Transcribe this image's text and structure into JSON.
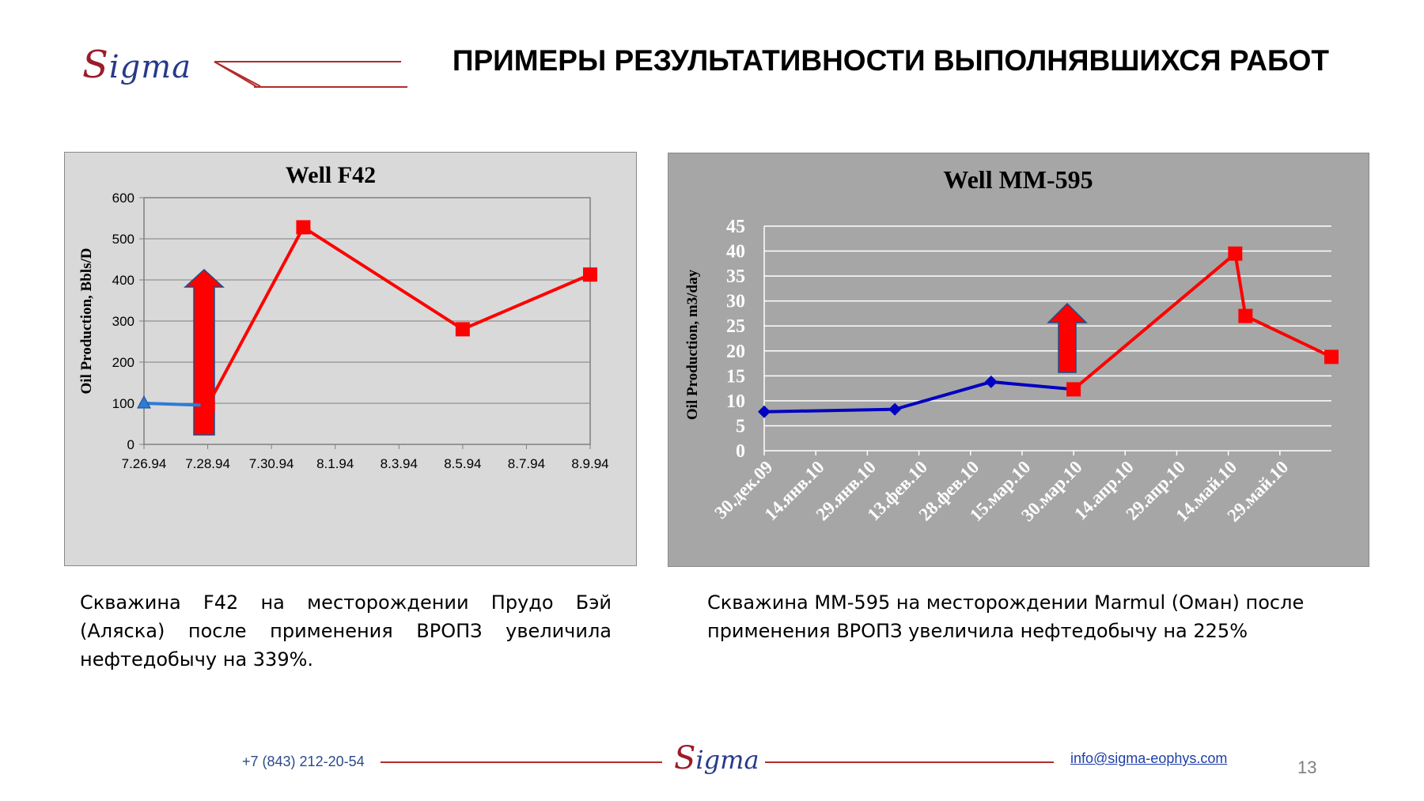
{
  "header": {
    "logo_letter": "S",
    "logo_rest": "igma",
    "title": "ПРИМЕРЫ РЕЗУЛЬТАТИВНОСТИ ВЫПОЛНЯВШИХСЯ РАБОТ"
  },
  "colors": {
    "accent_red": "#ff0000",
    "brand_blue": "#263a8a",
    "brand_dark_red": "#9b1c2c",
    "line_blue_chart1": "#2e7bd6",
    "line_blue_chart2": "#0000c0"
  },
  "chart_data": [
    {
      "type": "line",
      "title": "Well F42",
      "ylabel": "Oil Production, Bbls/D",
      "xlabel": "",
      "ylim": [
        0,
        600
      ],
      "yticks": [
        0,
        100,
        200,
        300,
        400,
        500,
        600
      ],
      "xticks": [
        "7.26.94",
        "7.28.94",
        "7.30.94",
        "8.1.94",
        "8.3.94",
        "8.5.94",
        "8.7.94",
        "8.9.94"
      ],
      "xrange": [
        "7.26.94",
        "8.9.94"
      ],
      "grid": true,
      "legend": "none",
      "series": [
        {
          "color": "#2e7bd6",
          "marker": "triangle",
          "points": [
            {
              "x": "7.26.94",
              "y": 100
            },
            {
              "x": "7.28.94",
              "y": 95
            }
          ]
        },
        {
          "color": "#ff0000",
          "marker": "square",
          "points": [
            {
              "x": "7.28.94",
              "y": 95
            },
            {
              "x": "7.31.94",
              "y": 528
            },
            {
              "x": "8.5.94",
              "y": 280
            },
            {
              "x": "8.9.94",
              "y": 413
            }
          ]
        }
      ],
      "annotations": [
        {
          "type": "arrow-up",
          "color": "#ff0000"
        }
      ]
    },
    {
      "type": "line",
      "title": "Well MM-595",
      "ylabel": "Oil Production, m3/day",
      "xlabel": "",
      "ylim": [
        0,
        45
      ],
      "yticks": [
        0,
        5,
        10,
        15,
        20,
        25,
        30,
        35,
        40,
        45
      ],
      "xticks": [
        "30.дек.09",
        "14.янв.10",
        "29.янв.10",
        "13.фев.10",
        "28.фев.10",
        "15.мар.10",
        "30.мар.10",
        "14.апр.10",
        "29.апр.10",
        "14.май.10",
        "29.май.10"
      ],
      "xrange": [
        "30.дек.09",
        "13.июн.10"
      ],
      "grid": true,
      "legend": "none",
      "series": [
        {
          "color": "#0000c0",
          "marker": "diamond",
          "points": [
            {
              "x": "30.дек.09",
              "y": 7.8
            },
            {
              "x": "6.фев.10",
              "y": 8.3
            },
            {
              "x": "6.мар.10",
              "y": 13.8
            },
            {
              "x": "30.мар.10",
              "y": 12.3
            }
          ]
        },
        {
          "color": "#ff0000",
          "marker": "square",
          "points": [
            {
              "x": "30.мар.10",
              "y": 12.3
            },
            {
              "x": "16.май.10",
              "y": 39.5
            },
            {
              "x": "19.май.10",
              "y": 27
            },
            {
              "x": "13.июн.10",
              "y": 18.8
            }
          ]
        }
      ],
      "annotations": [
        {
          "type": "arrow-up",
          "color": "#ff0000"
        }
      ]
    }
  ],
  "descriptions": [
    "Скважина F42 на месторождении Прудо Бэй (Аляска) после применения ВРОПЗ увеличила нефтедобычу на 339%.",
    "Скважина ММ-595 на месторождении Marmul (Оман) после применения ВРОПЗ увеличила нефтедобычу на  225%"
  ],
  "footer": {
    "phone": "+7 (843) 212-20-54",
    "email": "info@sigma-eophys.com",
    "page_number": "13"
  }
}
